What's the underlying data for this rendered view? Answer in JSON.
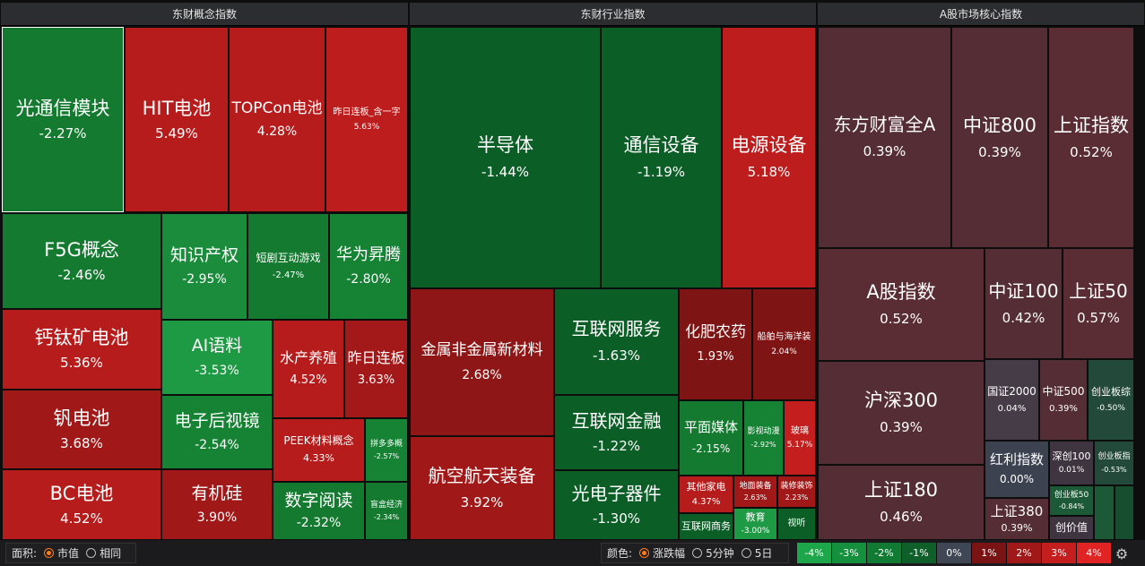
{
  "sections": {
    "concept": "东财概念指数",
    "industry": "东财行业指数",
    "core": "A股市场核心指数"
  },
  "tiles": {
    "c_gtx": {
      "name": "光通信模块",
      "pct": "-2.27%"
    },
    "c_hit": {
      "name": "HIT电池",
      "pct": "5.49%"
    },
    "c_topcon": {
      "name": "TOPCon电池",
      "pct": "4.28%"
    },
    "c_zrlb": {
      "name": "昨日连板_含一字",
      "pct": "5.63%"
    },
    "c_f5g": {
      "name": "F5G概念",
      "pct": "-2.46%"
    },
    "c_zscq": {
      "name": "知识产权",
      "pct": "-2.95%"
    },
    "c_dj": {
      "name": "短剧互动游戏",
      "pct": "-2.47%"
    },
    "c_hwst": {
      "name": "华为昇腾",
      "pct": "-2.80%"
    },
    "c_gtk": {
      "name": "钙钛矿电池",
      "pct": "5.36%"
    },
    "c_aiyl": {
      "name": "AI语料",
      "pct": "-3.53%"
    },
    "c_scyz": {
      "name": "水产养殖",
      "pct": "4.52%"
    },
    "c_zrlb2": {
      "name": "昨日连板",
      "pct": "3.63%"
    },
    "c_fdc": {
      "name": "钒电池",
      "pct": "3.68%"
    },
    "c_dzhsj": {
      "name": "电子后视镜",
      "pct": "-2.54%"
    },
    "c_peek": {
      "name": "PEEK材料概念",
      "pct": "4.33%"
    },
    "c_pdd": {
      "name": "拼多多概",
      "pct": "-2.57%"
    },
    "c_bc": {
      "name": "BC电池",
      "pct": "4.52%"
    },
    "c_yjg": {
      "name": "有机硅",
      "pct": "3.90%"
    },
    "c_szyd": {
      "name": "数字阅读",
      "pct": "-2.32%"
    },
    "c_mhjj": {
      "name": "盲盒经济",
      "pct": "-2.34%"
    },
    "i_bdt": {
      "name": "半导体",
      "pct": "-1.44%"
    },
    "i_txsb": {
      "name": "通信设备",
      "pct": "-1.19%"
    },
    "i_dysb": {
      "name": "电源设备",
      "pct": "5.18%"
    },
    "i_jsfjs": {
      "name": "金属非金属新材料",
      "pct": "2.68%"
    },
    "i_hlwfw": {
      "name": "互联网服务",
      "pct": "-1.63%"
    },
    "i_hfny": {
      "name": "化肥农药",
      "pct": "1.93%"
    },
    "i_cbhy": {
      "name": "船舶与海洋装",
      "pct": "2.04%"
    },
    "i_hlwjr": {
      "name": "互联网金融",
      "pct": "-1.22%"
    },
    "i_pmmt": {
      "name": "平面媒体",
      "pct": "-2.15%"
    },
    "i_ysdm": {
      "name": "影视动漫",
      "pct": "-2.92%"
    },
    "i_bl": {
      "name": "玻璃",
      "pct": "5.17%"
    },
    "i_hkht": {
      "name": "航空航天装备",
      "pct": "3.92%"
    },
    "i_gdzqj": {
      "name": "光电子器件",
      "pct": "-1.30%"
    },
    "i_qtjd": {
      "name": "其他家电",
      "pct": "4.37%"
    },
    "i_dmzb": {
      "name": "地面装备",
      "pct": "2.63%"
    },
    "i_zxzs": {
      "name": "装修装饰",
      "pct": "2.23%"
    },
    "i_hlwsw": {
      "name": "互联网商务",
      "pct": ""
    },
    "i_jy": {
      "name": "教育",
      "pct": "-3.00%"
    },
    "i_st": {
      "name": "视听",
      "pct": ""
    },
    "k_dfcf": {
      "name": "东方财富全A",
      "pct": "0.39%"
    },
    "k_zz800": {
      "name": "中证800",
      "pct": "0.39%"
    },
    "k_szzs": {
      "name": "上证指数",
      "pct": "0.52%"
    },
    "k_agzs": {
      "name": "A股指数",
      "pct": "0.52%"
    },
    "k_zz100": {
      "name": "中证100",
      "pct": "0.42%"
    },
    "k_sz50": {
      "name": "上证50",
      "pct": "0.57%"
    },
    "k_hs300": {
      "name": "沪深300",
      "pct": "0.39%"
    },
    "k_gz2000": {
      "name": "国证2000",
      "pct": "0.04%"
    },
    "k_zz500": {
      "name": "中证500",
      "pct": "0.39%"
    },
    "k_cybz": {
      "name": "创业板综",
      "pct": "-0.50%"
    },
    "k_hlzs": {
      "name": "红利指数",
      "pct": "0.00%"
    },
    "k_sc100": {
      "name": "深创100",
      "pct": "0.01%"
    },
    "k_cybzs": {
      "name": "创业板指",
      "pct": "-0.53%"
    },
    "k_sz180": {
      "name": "上证180",
      "pct": "0.46%"
    },
    "k_cyb50": {
      "name": "创业板50",
      "pct": "-0.84%"
    },
    "k_sz380": {
      "name": "上证380",
      "pct": "0.39%"
    },
    "k_cyz": {
      "name": "创价值",
      "pct": ""
    }
  },
  "toolbar": {
    "area_label": "面积:",
    "area_options": [
      "市值",
      "相同"
    ],
    "color_label": "颜色:",
    "color_options": [
      "涨跌幅",
      "5分钟",
      "5日"
    ],
    "legend": [
      "-4%",
      "-3%",
      "-2%",
      "-1%",
      "0%",
      "1%",
      "2%",
      "3%",
      "4%"
    ],
    "legend_colors": [
      "#1ea64a",
      "#15913d",
      "#117a33",
      "#0e5f29",
      "#3f4654",
      "#7a1313",
      "#a11818",
      "#c41e1e",
      "#e02424"
    ]
  }
}
